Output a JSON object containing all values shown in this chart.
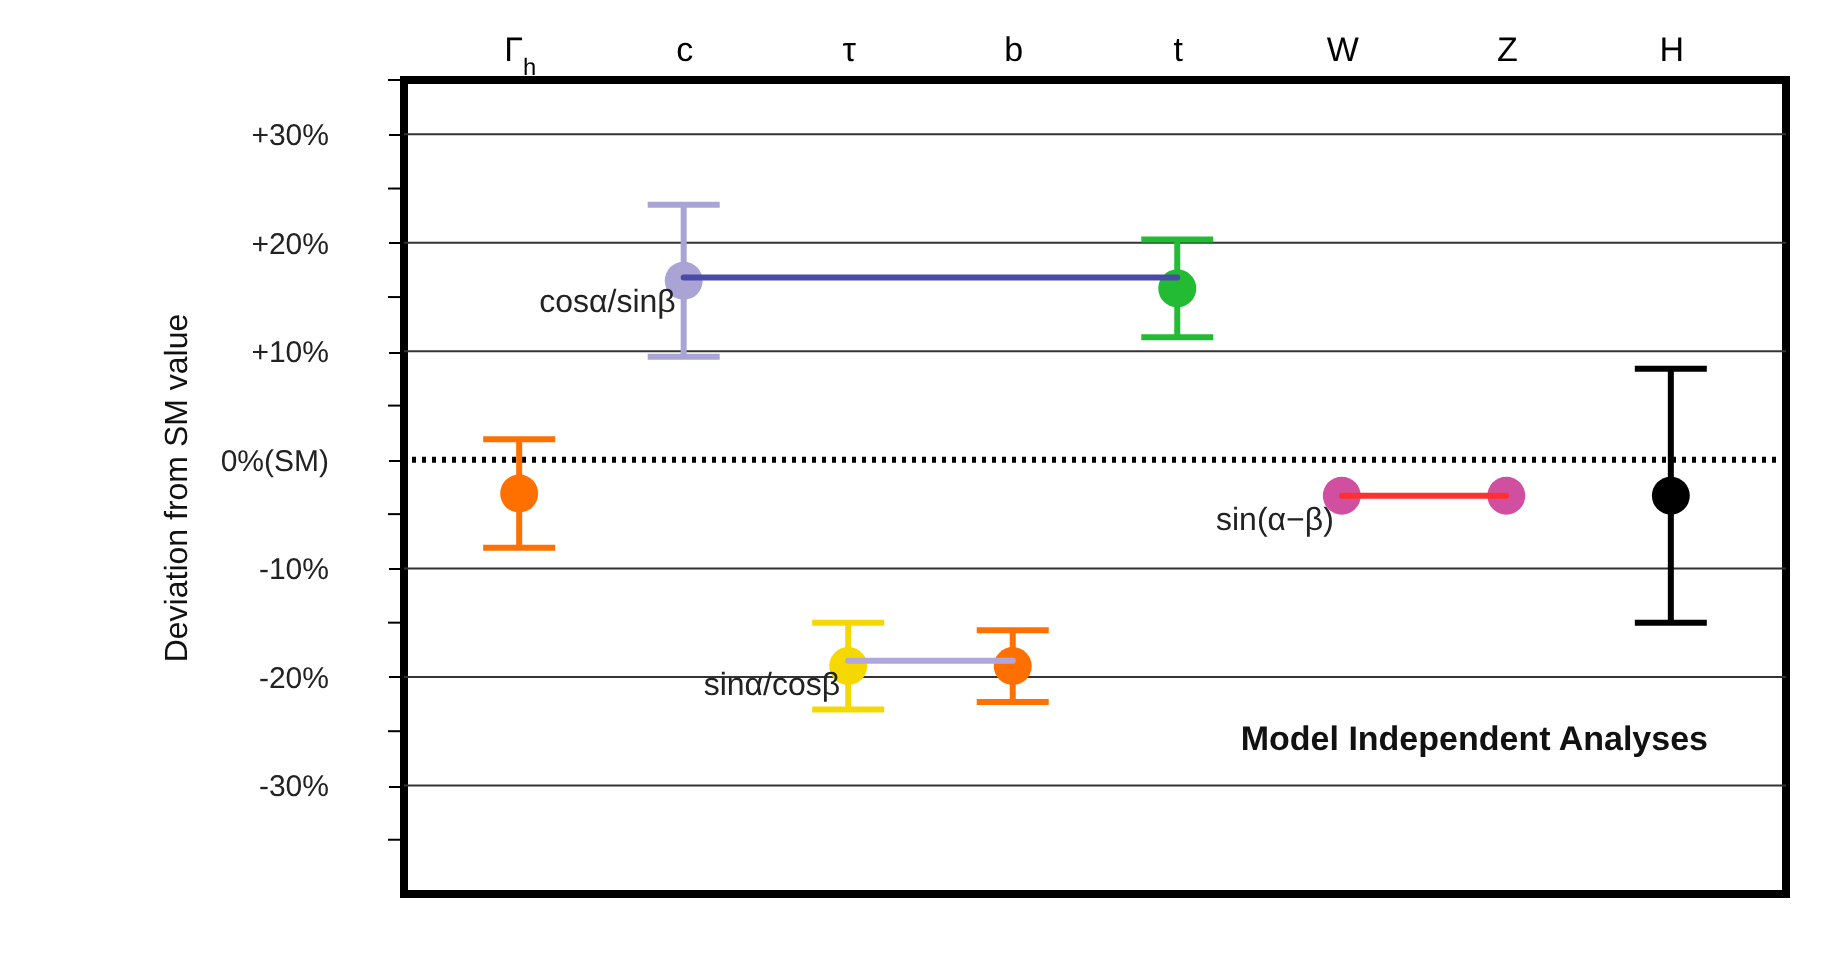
{
  "chart_data": {
    "type": "scatter",
    "ylabel": "Deviation from SM value",
    "categories": [
      "Γ$_{h}$",
      "c",
      "τ",
      "b",
      "t",
      "W",
      "Z",
      "H"
    ],
    "ylim": [
      -40,
      35
    ],
    "yticks": [
      {
        "value": 35,
        "label": null
      },
      {
        "value": 30,
        "label": "+30%"
      },
      {
        "value": 25,
        "label": null
      },
      {
        "value": 20,
        "label": "+20%"
      },
      {
        "value": 15,
        "label": null
      },
      {
        "value": 10,
        "label": "+10%"
      },
      {
        "value": 5,
        "label": null
      },
      {
        "value": 0,
        "label": "0%(SM)"
      },
      {
        "value": -5,
        "label": null
      },
      {
        "value": -10,
        "label": "-10%"
      },
      {
        "value": -15,
        "label": null
      },
      {
        "value": -20,
        "label": "-20%"
      },
      {
        "value": -25,
        "label": null
      },
      {
        "value": -30,
        "label": "-30%"
      },
      {
        "value": -35,
        "label": null
      }
    ],
    "grid": "y",
    "marker": "circle",
    "series": [
      {
        "type": "line",
        "name": "cosα/sinβ",
        "color": "#4a4aa8",
        "marker": "none",
        "values": [
          null,
          16.8,
          16.8,
          16.8,
          16.8,
          null,
          null,
          null
        ]
      },
      {
        "type": "line",
        "name": "sinα/cosβ",
        "color": "#b0a8dc",
        "marker": "none",
        "values": [
          null,
          null,
          -18.5,
          -18.5,
          null,
          null,
          null,
          null
        ]
      },
      {
        "type": "line",
        "name": "sin(α−β)",
        "color": "#ff3030",
        "marker": "none",
        "values": [
          null,
          null,
          null,
          null,
          null,
          -3.3,
          -3.3,
          null
        ]
      },
      {
        "type": "scatter",
        "colors": [
          "#ff7000",
          "#aaa3d5",
          "#f5d800",
          "#ff7000",
          "#22bb33",
          "#d04fa0",
          "#d04fa0",
          "#000000"
        ],
        "values": [
          -3.1,
          16.5,
          -19.0,
          -19.0,
          15.8,
          -3.3,
          -3.3,
          -3.3
        ],
        "errors": [
          5.0,
          7.0,
          4.0,
          3.3,
          4.5,
          null,
          null,
          11.7
        ]
      }
    ],
    "ref_lines": [
      {
        "axis": "y",
        "value": 0,
        "color": "#000000",
        "line_style": "dotted"
      }
    ],
    "annotations": [
      "Model Independent Analyses"
    ]
  }
}
